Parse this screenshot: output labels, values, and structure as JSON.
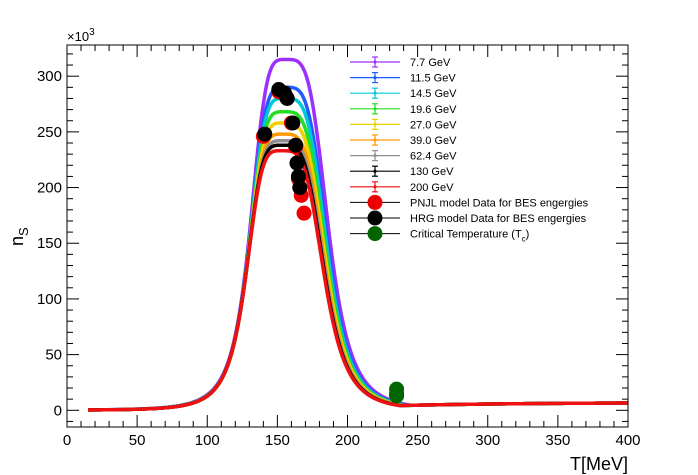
{
  "chart_data": {
    "type": "line",
    "title": "",
    "xlabel": "T[MeV]",
    "ylabel": "n",
    "ylabel_sub": "S",
    "y_exponent_label": "×10",
    "y_exponent_power": "3",
    "xlim": [
      0,
      400
    ],
    "ylim": [
      -15,
      328
    ],
    "x_ticks": [
      0,
      50,
      100,
      150,
      200,
      250,
      300,
      350,
      400
    ],
    "y_ticks": [
      0,
      50,
      100,
      150,
      200,
      250,
      300
    ],
    "grid": false,
    "legend_position": "top-right",
    "curve_model": {
      "rise_width": 26,
      "fall_width": 31,
      "tail_level": 7,
      "tail_decay": 90,
      "x_range": [
        15,
        400
      ]
    },
    "series": [
      {
        "name": "7.7 GeV",
        "color": "#9b30ff",
        "peak": 315,
        "peak_T": 156.0
      },
      {
        "name": "11.5 GeV",
        "color": "#1e5cff",
        "peak": 290,
        "peak_T": 155.4
      },
      {
        "name": "14.5 GeV",
        "color": "#00c8d8",
        "peak": 280,
        "peak_T": 155.0
      },
      {
        "name": "19.6 GeV",
        "color": "#22dd22",
        "peak": 268,
        "peak_T": 154.6
      },
      {
        "name": "27.0 GeV",
        "color": "#f2d000",
        "peak": 258,
        "peak_T": 154.2
      },
      {
        "name": "39.0 GeV",
        "color": "#ff9900",
        "peak": 248,
        "peak_T": 153.8
      },
      {
        "name": "62.4 GeV",
        "color": "#909090",
        "peak": 242,
        "peak_T": 153.5
      },
      {
        "name": "130 GeV",
        "color": "#000000",
        "peak": 238,
        "peak_T": 153.2
      },
      {
        "name": "200 GeV",
        "color": "#ee1111",
        "peak": 233,
        "peak_T": 153.0
      }
    ],
    "marker_series": [
      {
        "name": "PNJL model Data for BES engergies",
        "color": "#ee0000",
        "points": [
          [
            140,
            246
          ],
          [
            151,
            286
          ],
          [
            156,
            282
          ],
          [
            160,
            258
          ],
          [
            163,
            237
          ],
          [
            164,
            222
          ],
          [
            165,
            208
          ],
          [
            166,
            200
          ],
          [
            167,
            193
          ],
          [
            169,
            177
          ]
        ]
      },
      {
        "name": "HRG model Data for BES engergies",
        "color": "#000000",
        "points": [
          [
            141,
            248
          ],
          [
            151,
            288
          ],
          [
            155,
            285
          ],
          [
            157,
            280
          ],
          [
            161,
            258
          ],
          [
            163,
            238
          ],
          [
            164,
            222
          ],
          [
            165,
            210
          ],
          [
            166,
            200
          ]
        ]
      },
      {
        "name": "Critical Temperature (T",
        "name_sub": "c",
        "name_tail": ")",
        "color": "#006400",
        "points": [
          [
            235,
            19
          ],
          [
            235,
            15
          ],
          [
            235,
            13
          ]
        ]
      }
    ]
  }
}
